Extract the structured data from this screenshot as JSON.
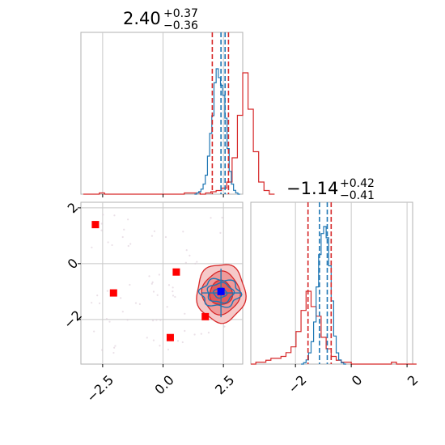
{
  "chart_data": {
    "type": "corner",
    "panels": {
      "x_marginal": {
        "title": {
          "value": "2.40",
          "plus": "+0.37",
          "minus": "−0.36"
        },
        "quantile_lines_red": [
          2.04,
          2.71
        ],
        "quantile_lines_blue": [
          2.4,
          2.57
        ],
        "hist_red": {
          "edges_start": -3.3,
          "bin_width": 0.22,
          "counts": [
            0,
            0,
            0,
            1,
            0,
            0,
            0,
            0,
            0,
            0,
            0,
            0,
            0,
            0,
            0,
            0,
            0,
            0,
            0,
            1,
            1,
            1,
            0,
            1,
            2,
            3,
            5,
            10,
            30,
            65,
            100,
            70,
            35,
            10,
            3,
            0
          ]
        },
        "hist_blue": {
          "edges_start": 1.3,
          "bin_width": 0.09,
          "counts": [
            0,
            1,
            2,
            4,
            8,
            15,
            30,
            48,
            62,
            88,
            99,
            92,
            86,
            78,
            60,
            36,
            18,
            8,
            3,
            1,
            0
          ]
        }
      },
      "y_marginal": {
        "title": {
          "value": "−1.14",
          "plus": "+0.42",
          "minus": "−0.41"
        },
        "quantile_lines_red": [
          -1.55,
          -0.72
        ],
        "quantile_lines_blue": [
          -1.14,
          -0.86
        ],
        "hist_red": {
          "edges_start": -3.6,
          "bin_width": 0.18,
          "counts": [
            0,
            1,
            1,
            2,
            3,
            3,
            4,
            6,
            9,
            17,
            28,
            38,
            30,
            25,
            14,
            8,
            4,
            2,
            1,
            1,
            0,
            0,
            0,
            0,
            0,
            0,
            0,
            0,
            1,
            0,
            0,
            0,
            0
          ]
        },
        "hist_blue": {
          "edges_start": -1.8,
          "bin_width": 0.09,
          "counts": [
            0,
            1,
            3,
            8,
            16,
            30,
            55,
            78,
            93,
            98,
            90,
            70,
            45,
            20,
            8,
            3,
            1,
            0
          ]
        }
      },
      "joint": {
        "xlim": [
          -3.4,
          3.3
        ],
        "ylim": [
          -3.6,
          2.2
        ],
        "red_markers": [
          {
            "x": -2.8,
            "y": 1.4
          },
          {
            "x": -2.05,
            "y": -1.05
          },
          {
            "x": 0.55,
            "y": -0.3
          },
          {
            "x": 1.75,
            "y": -1.9
          },
          {
            "x": 0.3,
            "y": -2.65
          }
        ],
        "blue_marker": {
          "x": 2.4,
          "y": -1.0
        },
        "contour_center": {
          "x": 2.4,
          "y": -1.05
        }
      }
    },
    "x_tick_labels": [
      "−2.5",
      "0.0",
      "2.5"
    ],
    "x_ticks": [
      -2.5,
      0.0,
      2.5
    ],
    "y_tick_labels": [
      "2",
      "0",
      "−2"
    ],
    "y_ticks": [
      2,
      0,
      -2
    ],
    "y_marginal_tick_labels": [
      "−2",
      "0",
      "2"
    ],
    "y_marginal_ticks": [
      -2,
      0,
      2
    ],
    "colors": {
      "red": "#d62728",
      "blue": "#1f77b4",
      "marker_red": "#ff0000",
      "marker_blue": "#0000ff",
      "grid": "#c8c8c8"
    }
  }
}
